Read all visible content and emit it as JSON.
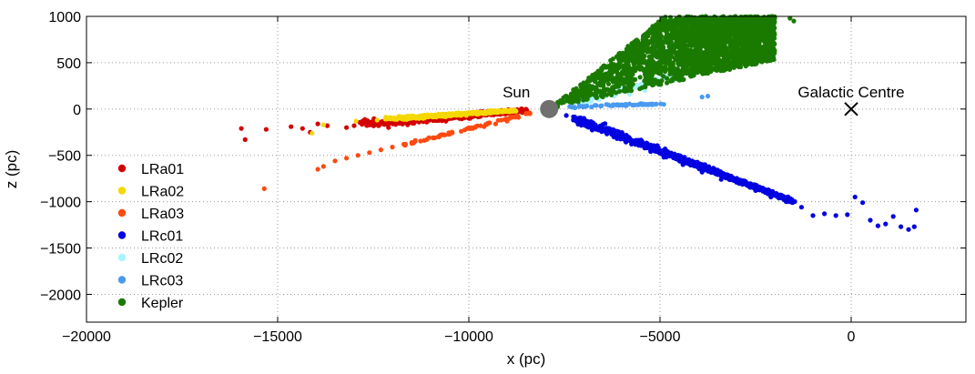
{
  "chart_data": {
    "type": "scatter",
    "xlabel": "x (pc)",
    "ylabel": "z (pc)",
    "xlim": [
      -20000,
      3000
    ],
    "ylim": [
      -2300,
      1000
    ],
    "grid": true,
    "legend_position": "bottom-left",
    "xticks": [
      -20000,
      -15000,
      -10000,
      -5000,
      0
    ],
    "xtick_labels": [
      "−20000",
      "−15000",
      "−10000",
      "−5000",
      "0"
    ],
    "yticks": [
      1000,
      500,
      0,
      -500,
      -1000,
      -1500,
      -2000
    ],
    "ytick_labels": [
      "1000",
      "500",
      "0",
      "−500",
      "−1000",
      "−1500",
      "−2000"
    ],
    "annotations": [
      {
        "label": "Sun",
        "x": -7900,
        "z": 0,
        "marker": "filled-circle",
        "color": "#707070"
      },
      {
        "label": "Galactic Centre",
        "x": 0,
        "z": 0,
        "marker": "x",
        "color": "#000000"
      }
    ],
    "series": [
      {
        "name": "LRa01",
        "color": "#d40000",
        "points": [
          [
            -15950,
            -210
          ],
          [
            -15850,
            -330
          ],
          [
            -15300,
            -220
          ],
          [
            -14650,
            -190
          ],
          [
            -14350,
            -210
          ],
          [
            -14150,
            -250
          ],
          [
            -13950,
            -160
          ],
          [
            -13700,
            -180
          ],
          [
            -13200,
            -200
          ],
          [
            -13000,
            -180
          ],
          [
            -12700,
            -150
          ],
          [
            -12500,
            -160
          ],
          [
            -12300,
            -140
          ],
          [
            -12100,
            -200
          ],
          [
            -11900,
            -130
          ],
          [
            -11600,
            -170
          ],
          [
            -11400,
            -120
          ],
          [
            -11100,
            -140
          ],
          [
            -10900,
            -110
          ],
          [
            -10600,
            -130
          ],
          [
            -10300,
            -90
          ],
          [
            -10000,
            -100
          ],
          [
            -9700,
            -80
          ],
          [
            -9400,
            -60
          ],
          [
            -9100,
            -50
          ],
          [
            -8800,
            -30
          ],
          [
            -8500,
            -15
          ]
        ],
        "band": {
          "from": [
            -12800,
            -165
          ],
          "to": [
            -8500,
            -15
          ],
          "spread": 45,
          "count": 420
        }
      },
      {
        "name": "LRa02",
        "color": "#f5d800",
        "points": [
          [
            -14100,
            -260
          ],
          [
            -13800,
            -170
          ],
          [
            -12950,
            -130
          ],
          [
            -12400,
            -120
          ],
          [
            -12000,
            -100
          ],
          [
            -11600,
            -90
          ],
          [
            -11200,
            -80
          ],
          [
            -10800,
            -70
          ],
          [
            -10300,
            -55
          ],
          [
            -9800,
            -45
          ],
          [
            -9300,
            -30
          ],
          [
            -8900,
            -20
          ]
        ],
        "band": {
          "from": [
            -12200,
            -110
          ],
          "to": [
            -8800,
            -15
          ],
          "spread": 22,
          "count": 420
        }
      },
      {
        "name": "LRa03",
        "color": "#ff4a10",
        "points": [
          [
            -15350,
            -860
          ],
          [
            -13950,
            -650
          ],
          [
            -13800,
            -620
          ],
          [
            -13500,
            -560
          ],
          [
            -13200,
            -530
          ],
          [
            -12900,
            -500
          ],
          [
            -12600,
            -470
          ],
          [
            -12300,
            -440
          ],
          [
            -12000,
            -410
          ],
          [
            -11700,
            -380
          ],
          [
            -11400,
            -340
          ],
          [
            -11100,
            -330
          ],
          [
            -10800,
            -300
          ],
          [
            -10500,
            -270
          ],
          [
            -10200,
            -240
          ],
          [
            -9900,
            -210
          ],
          [
            -9600,
            -190
          ],
          [
            -9300,
            -160
          ],
          [
            -9000,
            -130
          ],
          [
            -8700,
            -90
          ],
          [
            -8400,
            -50
          ]
        ],
        "band": {
          "from": [
            -12000,
            -420
          ],
          "to": [
            -8400,
            -40
          ],
          "spread": 10,
          "count": 60
        }
      },
      {
        "name": "LRc01",
        "color": "#0000e0",
        "points": [
          [
            -7450,
            -70
          ],
          [
            -6900,
            -170
          ],
          [
            -6400,
            -260
          ],
          [
            -5900,
            -350
          ],
          [
            -5400,
            -420
          ],
          [
            -4900,
            -520
          ],
          [
            -4400,
            -600
          ],
          [
            -3900,
            -680
          ],
          [
            -3400,
            -760
          ],
          [
            -3000,
            -790
          ],
          [
            -2500,
            -880
          ],
          [
            -2100,
            -950
          ],
          [
            -1700,
            -1000
          ],
          [
            -1300,
            -1060
          ],
          [
            -1000,
            -1150
          ],
          [
            -700,
            -1130
          ],
          [
            -400,
            -1150
          ],
          [
            -100,
            -1140
          ],
          [
            100,
            -950
          ],
          [
            300,
            -1010
          ],
          [
            500,
            -1200
          ],
          [
            700,
            -1260
          ],
          [
            900,
            -1240
          ],
          [
            1100,
            -1160
          ],
          [
            1300,
            -1270
          ],
          [
            1500,
            -1300
          ],
          [
            1650,
            -1270
          ],
          [
            1700,
            -1090
          ]
        ],
        "band": {
          "from": [
            -7300,
            -90
          ],
          "to": [
            -1500,
            -1000
          ],
          "spread": 45,
          "count": 900
        }
      },
      {
        "name": "LRc02",
        "color": "#a8f4ff",
        "points": [
          [
            -7100,
            60
          ],
          [
            -6600,
            100
          ],
          [
            -6200,
            140
          ],
          [
            -5800,
            160
          ],
          [
            -5400,
            200
          ],
          [
            -5000,
            260
          ],
          [
            -4600,
            310
          ],
          [
            -4200,
            380
          ],
          [
            -3900,
            450
          ],
          [
            -3700,
            520
          ],
          [
            -3500,
            560
          ]
        ],
        "band": {
          "from": [
            -7200,
            60
          ],
          "to": [
            -3600,
            500
          ],
          "spread": 35,
          "count": 200
        }
      },
      {
        "name": "LRc03",
        "color": "#4a9af0",
        "points": [
          [
            -7300,
            20
          ],
          [
            -7000,
            30
          ],
          [
            -6700,
            40
          ],
          [
            -6400,
            50
          ],
          [
            -6100,
            40
          ],
          [
            -5800,
            55
          ],
          [
            -5500,
            60
          ],
          [
            -5200,
            55
          ],
          [
            -4900,
            50
          ],
          [
            -3900,
            130
          ],
          [
            -3750,
            140
          ]
        ],
        "band": {
          "from": [
            -7400,
            25
          ],
          "to": [
            -5000,
            55
          ],
          "spread": 12,
          "count": 60
        }
      },
      {
        "name": "Kepler",
        "color": "#1a7a00",
        "points": [
          [
            -7800,
            40
          ],
          [
            -7400,
            120
          ],
          [
            -7000,
            230
          ],
          [
            -6600,
            350
          ],
          [
            -6200,
            480
          ],
          [
            -5800,
            620
          ],
          [
            -5400,
            760
          ],
          [
            -5000,
            870
          ],
          [
            -4600,
            950
          ],
          [
            -4200,
            990
          ],
          [
            -3800,
            1000
          ],
          [
            -3400,
            960
          ],
          [
            -3000,
            880
          ],
          [
            -2700,
            780
          ],
          [
            -2500,
            700
          ],
          [
            -2300,
            640
          ],
          [
            -2200,
            820
          ],
          [
            -2100,
            920
          ],
          [
            -2000,
            980
          ],
          [
            -1600,
            980
          ],
          [
            -1500,
            950
          ]
        ],
        "wedge": {
          "apex": [
            -7900,
            0
          ],
          "x_max": -2000,
          "z_low_slope": 0.09,
          "z_high_slope": 0.33,
          "z_cap": 1000,
          "count": 2600
        }
      }
    ]
  }
}
